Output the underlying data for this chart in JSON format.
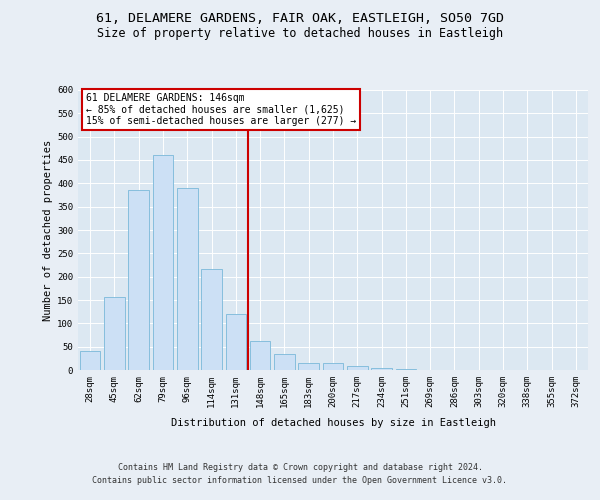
{
  "title_line1": "61, DELAMERE GARDENS, FAIR OAK, EASTLEIGH, SO50 7GD",
  "title_line2": "Size of property relative to detached houses in Eastleigh",
  "xlabel": "Distribution of detached houses by size in Eastleigh",
  "ylabel": "Number of detached properties",
  "categories": [
    "28sqm",
    "45sqm",
    "62sqm",
    "79sqm",
    "96sqm",
    "114sqm",
    "131sqm",
    "148sqm",
    "165sqm",
    "183sqm",
    "200sqm",
    "217sqm",
    "234sqm",
    "251sqm",
    "269sqm",
    "286sqm",
    "303sqm",
    "320sqm",
    "338sqm",
    "355sqm",
    "372sqm"
  ],
  "values": [
    40,
    157,
    385,
    460,
    390,
    217,
    120,
    62,
    35,
    15,
    15,
    8,
    5,
    3,
    0,
    0,
    0,
    0,
    0,
    0,
    0
  ],
  "bar_color": "#cce0f5",
  "bar_edge_color": "#7ab8d9",
  "vline_color": "#cc0000",
  "vline_pos": 6.5,
  "annotation_title": "61 DELAMERE GARDENS: 146sqm",
  "annotation_line1": "← 85% of detached houses are smaller (1,625)",
  "annotation_line2": "15% of semi-detached houses are larger (277) →",
  "annotation_box_color": "#ffffff",
  "annotation_box_edge": "#cc0000",
  "ylim": [
    0,
    600
  ],
  "yticks": [
    0,
    50,
    100,
    150,
    200,
    250,
    300,
    350,
    400,
    450,
    500,
    550,
    600
  ],
  "bg_color": "#e8eef5",
  "plot_bg_color": "#dce8f2",
  "footer_line1": "Contains HM Land Registry data © Crown copyright and database right 2024.",
  "footer_line2": "Contains public sector information licensed under the Open Government Licence v3.0.",
  "title_fontsize": 9.5,
  "subtitle_fontsize": 8.5,
  "axis_label_fontsize": 7.5,
  "tick_fontsize": 6.5,
  "footer_fontsize": 6.0,
  "annotation_fontsize": 7.0
}
